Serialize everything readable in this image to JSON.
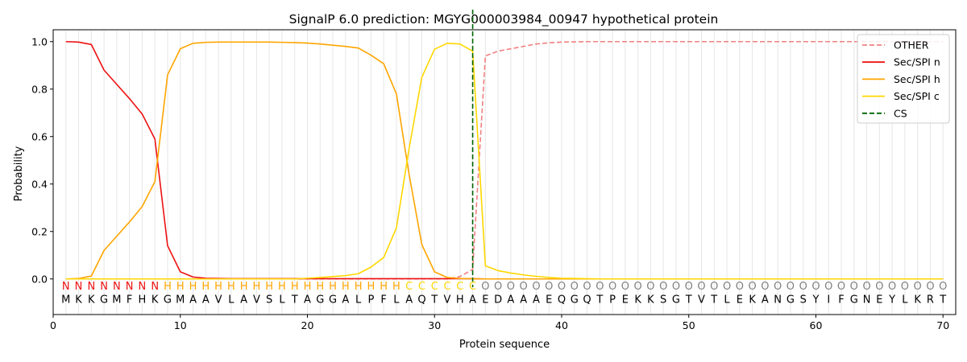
{
  "chart_data": {
    "type": "line",
    "title": "SignalP 6.0 prediction: MGYG000003984_00947 hypothetical protein",
    "xlabel": "Protein sequence",
    "ylabel": "Probability",
    "xlim": [
      0,
      71
    ],
    "ylim": [
      -0.15,
      1.05
    ],
    "xticks": [
      0,
      10,
      20,
      30,
      40,
      50,
      60,
      70
    ],
    "yticks": [
      0.0,
      0.2,
      0.4,
      0.6,
      0.8,
      1.0
    ],
    "ytick_labels": [
      "0.0",
      "0.2",
      "0.4",
      "0.6",
      "0.8",
      "1.0"
    ],
    "legend_position": "top-right",
    "sequence": "MKKGMFHKGMAAVLAVSLTAGGALPFLAQTVHAEDAAAEQGQTPEKKSGTVTLEKANGSYIFGNEYLKRT",
    "regions": "NNNNNNNNHHHHHHHHHHHHHHHHHHHCCCCCCOOOOOOOOOOOOOOOOOOOOOOOOOOOOOOOOOOOOO",
    "region_colors": {
      "N": "#ee1111",
      "H": "#ffa500",
      "C": "#ffd700",
      "O": "#808080"
    },
    "cleavage_site": 33,
    "series": [
      {
        "name": "OTHER",
        "color": "#f08080",
        "dash": "dashed",
        "values": [
          0,
          0,
          0,
          0,
          0,
          0,
          0,
          0,
          0,
          0,
          0,
          0,
          0,
          0,
          0,
          0,
          0,
          0,
          0,
          0,
          0,
          0,
          0,
          0,
          0,
          0,
          0,
          0,
          0,
          0,
          0,
          0.01,
          0.04,
          0.94,
          0.96,
          0.97,
          0.98,
          0.99,
          0.995,
          0.998,
          0.999,
          1,
          1,
          1,
          1,
          1,
          1,
          1,
          1,
          1,
          1,
          1,
          1,
          1,
          1,
          1,
          1,
          1,
          1,
          1,
          1,
          1,
          1,
          1,
          1,
          1,
          1,
          1,
          1,
          1
        ]
      },
      {
        "name": "Sec/SPI n",
        "color": "#ee1111",
        "dash": "solid",
        "values": [
          1.0,
          0.998,
          0.988,
          0.88,
          0.82,
          0.76,
          0.695,
          0.59,
          0.14,
          0.03,
          0.008,
          0.003,
          0.002,
          0.001,
          0.001,
          0.001,
          0.001,
          0.001,
          0.001,
          0.001,
          0.001,
          0.001,
          0.001,
          0.001,
          0.001,
          0.001,
          0.001,
          0.001,
          0.001,
          0.001,
          0.001,
          0.001,
          0.001,
          0,
          0,
          0,
          0,
          0,
          0,
          0,
          0,
          0,
          0,
          0,
          0,
          0,
          0,
          0,
          0,
          0,
          0,
          0,
          0,
          0,
          0,
          0,
          0,
          0,
          0,
          0,
          0,
          0,
          0,
          0,
          0,
          0,
          0,
          0,
          0,
          0
        ]
      },
      {
        "name": "Sec/SPI h",
        "color": "#ffa500",
        "dash": "solid",
        "values": [
          0,
          0.002,
          0.012,
          0.12,
          0.18,
          0.24,
          0.305,
          0.41,
          0.86,
          0.97,
          0.993,
          0.997,
          0.998,
          0.998,
          0.998,
          0.998,
          0.998,
          0.997,
          0.996,
          0.994,
          0.99,
          0.985,
          0.98,
          0.973,
          0.943,
          0.907,
          0.78,
          0.44,
          0.145,
          0.03,
          0.006,
          0.002,
          0.001,
          0,
          0,
          0,
          0,
          0,
          0,
          0,
          0,
          0,
          0,
          0,
          0,
          0,
          0,
          0,
          0,
          0,
          0,
          0,
          0,
          0,
          0,
          0,
          0,
          0,
          0,
          0,
          0,
          0,
          0,
          0,
          0,
          0,
          0,
          0,
          0,
          0
        ]
      },
      {
        "name": "Sec/SPI c",
        "color": "#ffd700",
        "dash": "solid",
        "values": [
          0,
          0,
          0,
          0,
          0,
          0,
          0,
          0,
          0,
          0,
          0,
          0,
          0,
          0,
          0,
          0,
          0,
          0,
          0,
          0.003,
          0.006,
          0.01,
          0.014,
          0.022,
          0.05,
          0.09,
          0.215,
          0.55,
          0.85,
          0.968,
          0.993,
          0.99,
          0.96,
          0.055,
          0.035,
          0.025,
          0.017,
          0.011,
          0.006,
          0.003,
          0.002,
          0.001,
          0,
          0,
          0,
          0,
          0,
          0,
          0,
          0,
          0,
          0,
          0,
          0,
          0,
          0,
          0,
          0,
          0,
          0,
          0,
          0,
          0,
          0,
          0,
          0,
          0,
          0,
          0,
          0
        ]
      },
      {
        "name": "CS",
        "color": "#006400",
        "dash": "dashed",
        "values": []
      }
    ]
  }
}
